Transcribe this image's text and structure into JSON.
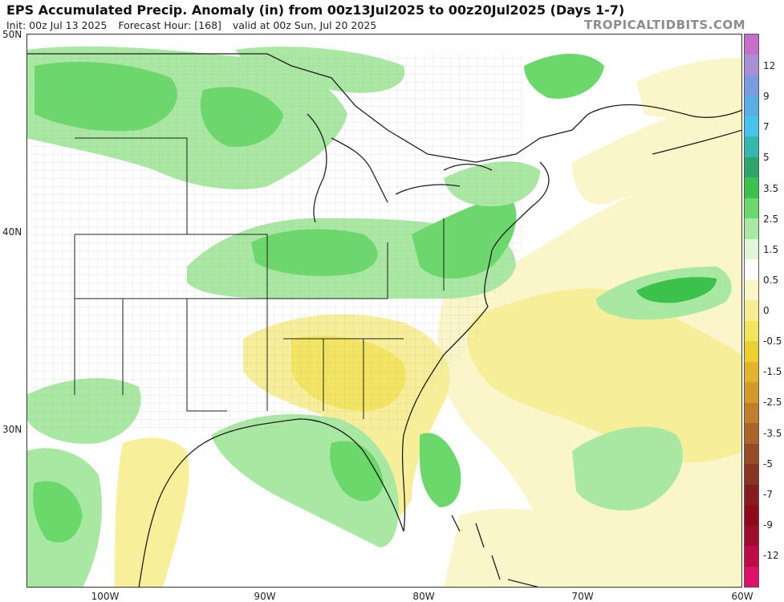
{
  "header": {
    "title": "EPS Accumulated Precip. Anomaly (in) from 00z13Jul2025 to 00z20Jul2025 (Days 1-7)",
    "init": "Init: 00z Jul 13 2025",
    "forecast_hour": "Forecast Hour: [168]",
    "valid": "valid at 00z Sun, Jul 20 2025",
    "brand": "TROPICALTIDBITS.COM"
  },
  "axes": {
    "latitude_labels": [
      "50N",
      "40N",
      "30N"
    ],
    "longitude_labels": [
      "100W",
      "90W",
      "80W",
      "70W",
      "60W"
    ]
  },
  "legend": {
    "labels": [
      "12",
      "9",
      "7",
      "5",
      "3.5",
      "2.5",
      "1.5",
      "0.5",
      "0",
      "-0.5",
      "-1.5",
      "-2.5",
      "-3.5",
      "-5",
      "-7",
      "-9",
      "-12"
    ],
    "colors": [
      "#c66fc8",
      "#a98fd6",
      "#7b9be0",
      "#5aaee8",
      "#47c4ec",
      "#35b7b0",
      "#2ea56a",
      "#3cc24c",
      "#6ad86a",
      "#a9e8a2",
      "#ddf6d8",
      "#ffffff",
      "#fbf6c8",
      "#f7ee94",
      "#f3e45a",
      "#ecd030",
      "#e2b52a",
      "#d39a2a",
      "#c27e2a",
      "#ad6428",
      "#984c26",
      "#8a3424",
      "#861c1e",
      "#8e0a1a",
      "#a00a2c",
      "#c00a48",
      "#e0106a"
    ]
  },
  "map": {
    "colors": {
      "land_background": "#ffffff",
      "wet_light": "#a9e8a2",
      "wet_mid": "#6ad86a",
      "wet_strong": "#3cc24c",
      "dry_light": "#fbf6c8",
      "dry_mid": "#f7ee94",
      "dry_strong": "#f3e45a",
      "borders": "#222222",
      "counties": "#9a9a9a"
    }
  }
}
